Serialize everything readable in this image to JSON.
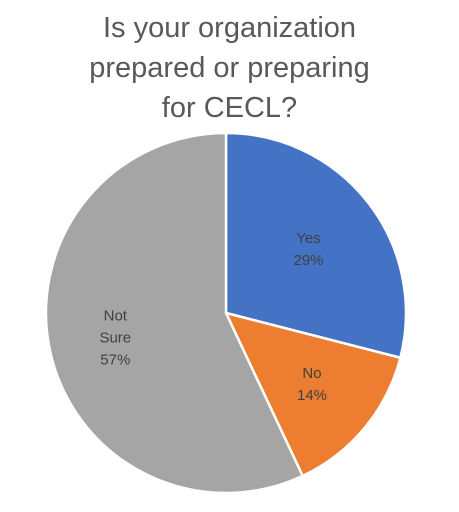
{
  "chart_data": {
    "type": "pie",
    "title_lines": [
      "Is your organization",
      "prepared or preparing",
      "for CECL?"
    ],
    "categories": [
      "Yes",
      "No",
      "Not Sure"
    ],
    "category_label_lines": [
      [
        "Yes"
      ],
      [
        "No"
      ],
      [
        "Not",
        "Sure"
      ]
    ],
    "values": [
      29,
      14,
      57
    ],
    "value_labels": [
      "29%",
      "14%",
      "57%"
    ],
    "unit": "%",
    "colors": [
      "#4472C4",
      "#ED7D31",
      "#A5A5A5"
    ],
    "start_angle": "12 o'clock",
    "direction": "clockwise",
    "legend": "none",
    "data_labels": "inside"
  }
}
